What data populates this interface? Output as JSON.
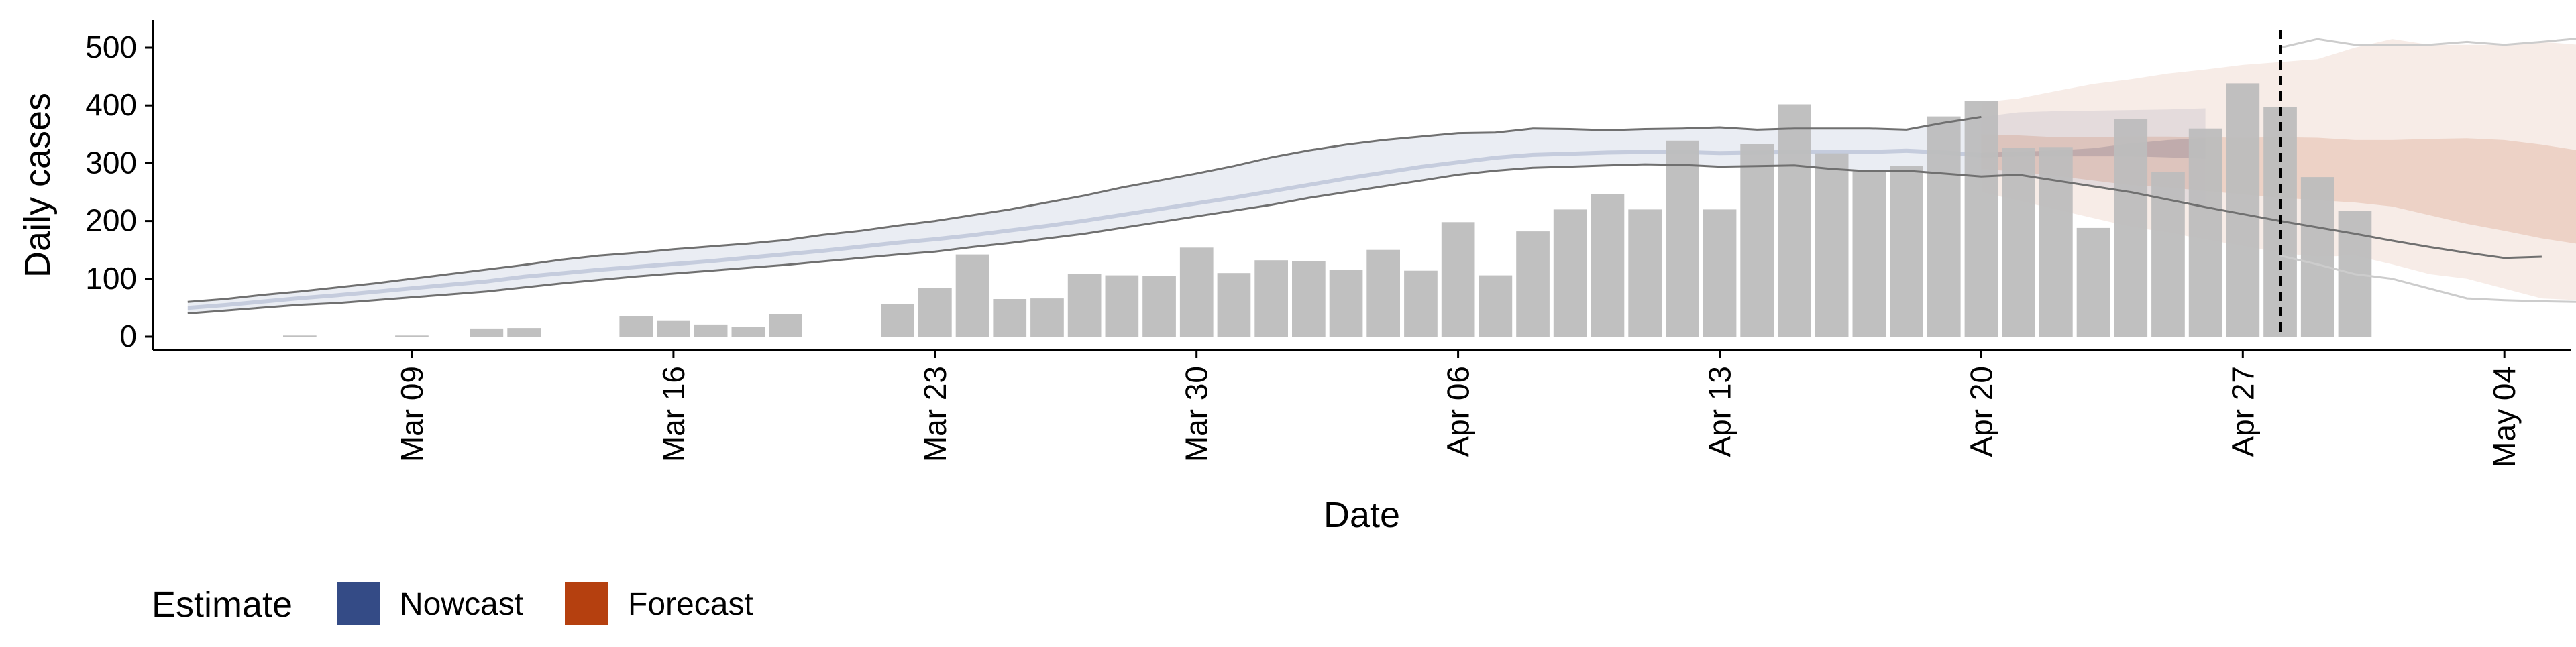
{
  "chart_data": {
    "type": "bar",
    "xlabel": "Date",
    "ylabel": "Daily cases",
    "ylim": [
      0,
      500
    ],
    "y_ticks": [
      "0",
      "100",
      "200",
      "300",
      "400",
      "500"
    ],
    "x_range": [
      "2020-03-02",
      "2020-05-06"
    ],
    "x_ticks": [
      {
        "date": "2020-03-09",
        "label": "Mar 09"
      },
      {
        "date": "2020-03-16",
        "label": "Mar 16"
      },
      {
        "date": "2020-03-23",
        "label": "Mar 23"
      },
      {
        "date": "2020-03-30",
        "label": "Mar 30"
      },
      {
        "date": "2020-04-06",
        "label": "Apr 06"
      },
      {
        "date": "2020-04-13",
        "label": "Apr 13"
      },
      {
        "date": "2020-04-20",
        "label": "Apr 20"
      },
      {
        "date": "2020-04-27",
        "label": "Apr 27"
      },
      {
        "date": "2020-05-04",
        "label": "May 04"
      }
    ],
    "grid": false,
    "legend": {
      "title": "Estimate",
      "position": "bottom-left",
      "entries": [
        {
          "label": "Nowcast",
          "color": "#344b86"
        },
        {
          "label": "Forecast",
          "color": "#b5400f"
        }
      ]
    },
    "colors": {
      "bars": "#bdbdbd",
      "nowcast_band": "#344b86",
      "forecast_band": "#b5400f",
      "bound_line": "#707070",
      "forecast_bound_line": "#cccccc",
      "vline": "#000000"
    },
    "observed_cases": {
      "start_date": "2020-03-06",
      "values": [
        2,
        0,
        0,
        2,
        0,
        14,
        15,
        0,
        0,
        35,
        27,
        21,
        17,
        39,
        0,
        0,
        56,
        84,
        142,
        65,
        66,
        109,
        106,
        105,
        154,
        110,
        132,
        130,
        116,
        150,
        114,
        198,
        106,
        182,
        220,
        247,
        220,
        339,
        220,
        333,
        402,
        317,
        286,
        295,
        381,
        408,
        327,
        328,
        188,
        376,
        285,
        360,
        438,
        397,
        276,
        217
      ]
    },
    "nowcast": {
      "start_date": "2020-03-03",
      "lower_90": [
        40,
        45,
        50,
        55,
        58,
        63,
        68,
        73,
        78,
        85,
        92,
        98,
        104,
        109,
        114,
        119,
        124,
        130,
        136,
        142,
        147,
        155,
        162,
        170,
        178,
        188,
        198,
        208,
        218,
        228,
        240,
        250,
        260,
        270,
        280,
        287,
        292,
        294,
        296,
        298,
        297,
        294,
        295,
        296,
        290,
        286,
        287,
        282,
        277,
        280,
        270,
        260,
        250,
        240,
        228
      ],
      "lower_50": [
        46,
        51,
        57,
        63,
        68,
        74,
        80,
        86,
        92,
        100,
        106,
        112,
        117,
        122,
        127,
        133,
        139,
        145,
        152,
        159,
        165,
        172,
        180,
        188,
        197,
        207,
        217,
        227,
        237,
        248,
        259,
        270,
        280,
        290,
        298,
        306,
        311,
        313,
        315,
        316,
        316,
        314,
        315,
        316,
        316,
        316,
        318,
        315,
        310,
        312,
        312,
        312,
        312,
        310,
        308
      ],
      "upper_50": [
        53,
        58,
        64,
        70,
        75,
        81,
        87,
        93,
        99,
        107,
        113,
        119,
        124,
        129,
        134,
        140,
        146,
        152,
        159,
        166,
        172,
        179,
        187,
        195,
        204,
        214,
        224,
        234,
        244,
        255,
        266,
        277,
        287,
        297,
        305,
        313,
        318,
        320,
        322,
        323,
        323,
        321,
        322,
        323,
        323,
        323,
        325,
        322,
        318,
        320,
        322,
        326,
        334,
        340,
        343
      ],
      "upper_90": [
        60,
        65,
        72,
        78,
        85,
        92,
        100,
        108,
        116,
        124,
        133,
        140,
        145,
        151,
        156,
        161,
        167,
        176,
        183,
        192,
        200,
        210,
        220,
        232,
        244,
        258,
        270,
        282,
        295,
        310,
        322,
        332,
        340,
        346,
        352,
        353,
        360,
        359,
        357,
        359,
        360,
        362,
        358,
        360,
        360,
        360,
        358,
        370,
        380,
        388,
        390,
        391,
        392,
        393,
        395
      ]
    },
    "nowcast_lower_line": {
      "start_date": "2020-03-03",
      "values": [
        40,
        45,
        50,
        55,
        58,
        63,
        68,
        73,
        78,
        85,
        92,
        98,
        104,
        109,
        114,
        119,
        124,
        130,
        136,
        142,
        147,
        155,
        162,
        170,
        178,
        188,
        198,
        208,
        218,
        228,
        240,
        250,
        260,
        270,
        280,
        287,
        292,
        294,
        296,
        298,
        297,
        294,
        295,
        296,
        290,
        286,
        287,
        282,
        277,
        280,
        270,
        260,
        250,
        237,
        224,
        212,
        200,
        189,
        178,
        166,
        155,
        145,
        136,
        138
      ]
    },
    "nowcast_upper_line": {
      "start_date": "2020-03-03",
      "values": [
        60,
        65,
        72,
        78,
        85,
        92,
        100,
        108,
        116,
        124,
        133,
        140,
        145,
        151,
        156,
        161,
        167,
        176,
        183,
        192,
        200,
        210,
        220,
        232,
        244,
        258,
        270,
        282,
        295,
        310,
        322,
        332,
        340,
        346,
        352,
        353,
        360,
        359,
        357,
        359,
        360,
        362,
        358,
        360,
        360,
        360,
        358,
        370,
        380
      ]
    },
    "forecast": {
      "start_date": "2020-04-20",
      "lower_90": [
        250,
        235,
        220,
        205,
        190,
        180,
        168,
        157,
        145,
        138,
        140,
        125,
        108,
        100,
        83,
        66,
        63,
        61,
        60
      ],
      "lower_50": [
        290,
        285,
        278,
        270,
        262,
        258,
        252,
        246,
        240,
        236,
        232,
        225,
        210,
        195,
        183,
        170,
        160,
        155,
        152
      ],
      "upper_50": [
        350,
        348,
        345,
        345,
        346,
        346,
        345,
        344,
        345,
        344,
        340,
        340,
        342,
        343,
        340,
        332,
        322,
        318,
        318
      ],
      "upper_90": [
        405,
        412,
        425,
        437,
        445,
        455,
        462,
        470,
        475,
        480,
        500,
        515,
        505,
        505,
        505,
        510,
        505,
        510,
        516
      ]
    },
    "forecast_bound_lines": {
      "start_date": "2020-04-28",
      "lower": [
        140,
        125,
        108,
        100,
        83,
        66,
        63,
        61,
        60
      ],
      "upper": [
        500,
        515,
        505,
        505,
        505,
        510,
        505,
        510,
        516
      ]
    },
    "vline_date": "2020-04-28"
  }
}
